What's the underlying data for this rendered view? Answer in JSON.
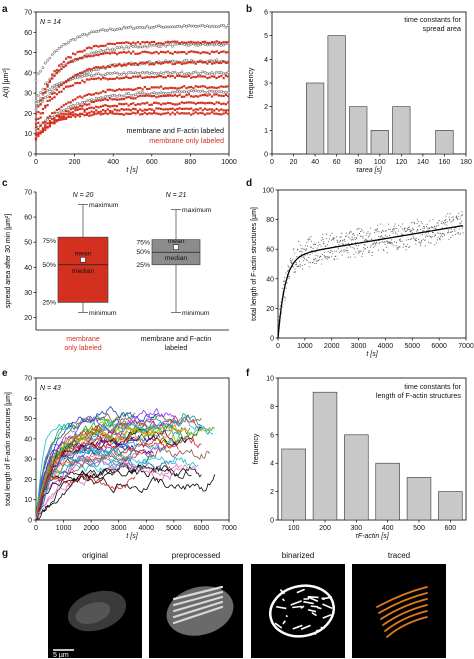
{
  "panels": [
    "a",
    "b",
    "c",
    "d",
    "e",
    "f",
    "g"
  ],
  "chart_data": [
    {
      "id": "a",
      "type": "line",
      "annotation": "N = 14",
      "xlabel": "t [s]",
      "ylabel": "A(t) [µm²]",
      "xlim": [
        0,
        1000
      ],
      "ylim": [
        0,
        70
      ],
      "xticks": [
        0,
        200,
        400,
        600,
        800,
        1000
      ],
      "yticks": [
        0,
        10,
        20,
        30,
        40,
        50,
        60,
        70
      ],
      "legend": [
        {
          "label": "membrane and F-actin labeled",
          "color": "#222222"
        },
        {
          "label": "membrane only labeled",
          "color": "#d4301f"
        }
      ],
      "series": [
        {
          "group": "membrane and F-actin labeled",
          "start": 37,
          "plateau": 63,
          "tau": 140
        },
        {
          "group": "membrane and F-actin labeled",
          "start": 27,
          "plateau": 54,
          "tau": 160
        },
        {
          "group": "membrane and F-actin labeled",
          "start": 22,
          "plateau": 46,
          "tau": 180
        },
        {
          "group": "membrane and F-actin labeled",
          "start": 25,
          "plateau": 40,
          "tau": 120
        },
        {
          "group": "membrane and F-actin labeled",
          "start": 12,
          "plateau": 31,
          "tau": 200
        },
        {
          "group": "membrane only labeled",
          "start": 20,
          "plateau": 55,
          "tau": 110
        },
        {
          "group": "membrane only labeled",
          "start": 17,
          "plateau": 50,
          "tau": 90
        },
        {
          "group": "membrane only labeled",
          "start": 15,
          "plateau": 45,
          "tau": 130
        },
        {
          "group": "membrane only labeled",
          "start": 13,
          "plateau": 38,
          "tau": 100
        },
        {
          "group": "membrane only labeled",
          "start": 10,
          "plateau": 33,
          "tau": 150
        },
        {
          "group": "membrane only labeled",
          "start": 9,
          "plateau": 29,
          "tau": 170
        },
        {
          "group": "membrane only labeled",
          "start": 8,
          "plateau": 25,
          "tau": 140
        },
        {
          "group": "membrane only labeled",
          "start": 8,
          "plateau": 22,
          "tau": 120
        },
        {
          "group": "membrane only labeled",
          "start": 7,
          "plateau": 20,
          "tau": 90
        }
      ]
    },
    {
      "id": "b",
      "type": "bar",
      "title": "time constants for spread area",
      "xlabel": "τarea [s]",
      "ylabel": "frequency",
      "xlim": [
        0,
        180
      ],
      "ylim": [
        0,
        6
      ],
      "xticks": [
        0,
        20,
        40,
        60,
        80,
        100,
        120,
        140,
        160,
        180
      ],
      "yticks": [
        0,
        1,
        2,
        3,
        4,
        5,
        6
      ],
      "bins": [
        {
          "from": 30,
          "to": 50,
          "count": 3
        },
        {
          "from": 50,
          "to": 70,
          "count": 5
        },
        {
          "from": 70,
          "to": 90,
          "count": 2
        },
        {
          "from": 90,
          "to": 110,
          "count": 1
        },
        {
          "from": 110,
          "to": 130,
          "count": 2
        },
        {
          "from": 130,
          "to": 150,
          "count": 0
        },
        {
          "from": 150,
          "to": 170,
          "count": 1
        }
      ],
      "bar_color": "#c8c8c8"
    },
    {
      "id": "c",
      "type": "box",
      "ylabel": "spread area after 30 min [µm²]",
      "ylim": [
        15,
        70
      ],
      "yticks": [
        20,
        30,
        40,
        50,
        60,
        70
      ],
      "boxes": [
        {
          "label": "membrane only labeled",
          "n_label": "N = 20",
          "color": "#d4301f",
          "min": 22,
          "q1": 26,
          "median": 41,
          "mean": 43,
          "q3": 52,
          "max": 65
        },
        {
          "label": "membrane and F-actin labeled",
          "n_label": "N = 21",
          "color": "#8c8c8c",
          "min": 22,
          "q1": 41,
          "median": 46,
          "mean": 48,
          "q3": 51,
          "max": 63
        }
      ],
      "box_annotations": [
        "maximum",
        "75%",
        "mean",
        "50%",
        "median",
        "25%",
        "minimum"
      ]
    },
    {
      "id": "d",
      "type": "scatter",
      "xlabel": "t [s]",
      "ylabel": "total length of F-actin structures [µm]",
      "xlim": [
        0,
        7000
      ],
      "ylim": [
        0,
        100
      ],
      "xticks": [
        0,
        1000,
        2000,
        3000,
        4000,
        5000,
        6000,
        7000
      ],
      "yticks": [
        0,
        20,
        40,
        60,
        80,
        100
      ],
      "fit": {
        "plateau": 58,
        "slope_per_s": 0.00305,
        "tau": 260
      }
    },
    {
      "id": "e",
      "type": "line",
      "annotation": "N = 43",
      "xlabel": "t [s]",
      "ylabel": "total length of F-actin structures [µm]",
      "xlim": [
        0,
        7000
      ],
      "ylim": [
        0,
        70
      ],
      "xticks": [
        0,
        1000,
        2000,
        3000,
        4000,
        5000,
        6000,
        7000
      ],
      "yticks": [
        0,
        10,
        20,
        30,
        40,
        50,
        60,
        70
      ],
      "series_count": 43,
      "series_colors": [
        "#1f3fbf",
        "#2ca02c",
        "#e31a1c",
        "#17becf",
        "#000000",
        "#9b30ff",
        "#ff7f0e",
        "#e377c2",
        "#00a0a0",
        "#8c564b",
        "#3a9bdc",
        "#7fbf00",
        "#d62728",
        "#111111",
        "#4b0082"
      ]
    },
    {
      "id": "f",
      "type": "bar",
      "title": "time constants for length of F-actin structures",
      "xlabel": "τF-actin [s]",
      "ylabel": "frequency",
      "xlim": [
        50,
        650
      ],
      "ylim": [
        0,
        10
      ],
      "xticks": [
        100,
        200,
        300,
        400,
        500,
        600
      ],
      "yticks": [
        0,
        2,
        4,
        6,
        8,
        10
      ],
      "bins": [
        {
          "center": 100,
          "count": 5
        },
        {
          "center": 200,
          "count": 9
        },
        {
          "center": 300,
          "count": 6
        },
        {
          "center": 400,
          "count": 4
        },
        {
          "center": 500,
          "count": 3
        },
        {
          "center": 600,
          "count": 2
        }
      ],
      "bar_color": "#c8c8c8"
    }
  ],
  "micrographs": {
    "titles": [
      "original",
      "preprocessed",
      "binarized",
      "traced"
    ],
    "scale_bar_label": "5 µm",
    "traced_color": "#e07b1a"
  }
}
